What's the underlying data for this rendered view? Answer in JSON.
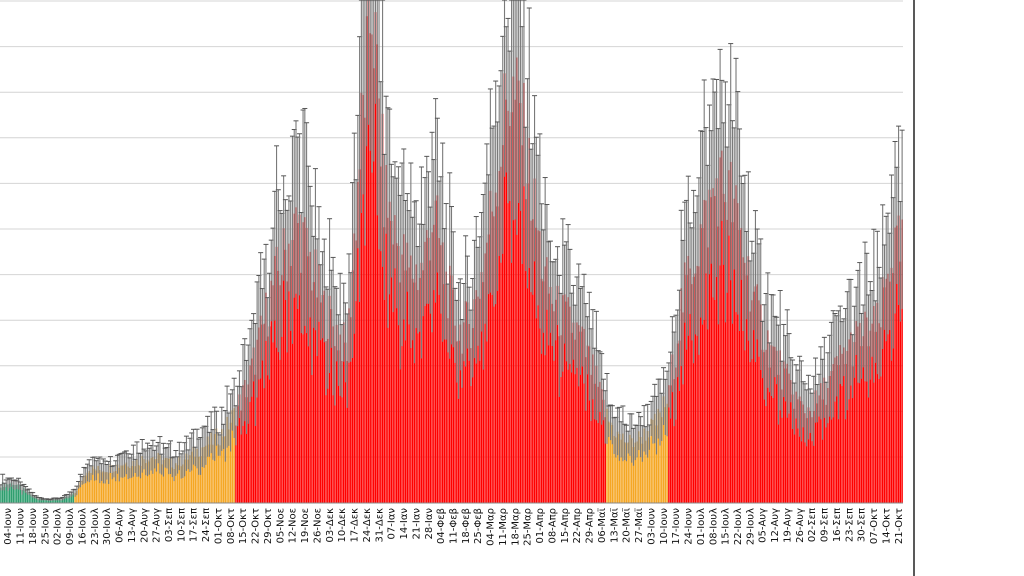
{
  "chart_data": {
    "type": "bar",
    "title": "",
    "xlabel": "",
    "ylabel": "",
    "grid": true,
    "legend": "none",
    "colors": {
      "green": "#2e9e6e",
      "orange": "#f5a623",
      "red": "#ff0000",
      "error_bar": "#7a7a7a",
      "gridline": "#d4d4d4"
    },
    "x_tick_labels": [
      "04-Ιουν",
      "11-Ιουν",
      "18-Ιουν",
      "25-Ιουν",
      "02-Ιουλ",
      "09-Ιουλ",
      "16-Ιουλ",
      "23-Ιουλ",
      "30-Ιουλ",
      "06-Αυγ",
      "13-Αυγ",
      "20-Αυγ",
      "27-Αυγ",
      "03-Σεπ",
      "10-Σεπ",
      "17-Σεπ",
      "24-Σεπ",
      "01-Οκτ",
      "08-Οκτ",
      "15-Οκτ",
      "22-Οκτ",
      "29-Οκτ",
      "05-Νοε",
      "12-Νοε",
      "19-Νοε",
      "26-Νοε",
      "03-Δεκ",
      "10-Δεκ",
      "17-Δεκ",
      "24-Δεκ",
      "31-Δεκ",
      "07-Ιαν",
      "14-Ιαν",
      "21-Ιαν",
      "28-Ιαν",
      "04-Φεβ",
      "11-Φεβ",
      "18-Φεβ",
      "25-Φεβ",
      "04-Μαρ",
      "11-Μαρ",
      "18-Μαρ",
      "25-Μαρ",
      "01-Απρ",
      "08-Απρ",
      "15-Απρ",
      "22-Απρ",
      "29-Απρ",
      "06-Μαϊ",
      "13-Μαϊ",
      "20-Μαϊ",
      "27-Μαϊ",
      "03-Ιουν",
      "10-Ιουν",
      "17-Ιουν",
      "24-Ιουν",
      "01-Ιουλ",
      "08-Ιουλ",
      "15-Ιουλ",
      "22-Ιουλ",
      "29-Ιουλ",
      "05-Αυγ",
      "12-Αυγ",
      "19-Αυγ",
      "26-Αυγ",
      "02-Σεπ",
      "09-Σεπ",
      "16-Σεπ",
      "23-Σεπ",
      "30-Σεπ",
      "07-Οκτ",
      "14-Οκτ",
      "21-Οκτ"
    ],
    "weekly_means": [
      18,
      20,
      12,
      4,
      3,
      4,
      10,
      34,
      33,
      35,
      40,
      41,
      47,
      43,
      39,
      44,
      53,
      61,
      70,
      90,
      120,
      165,
      215,
      248,
      278,
      240,
      195,
      175,
      150,
      345,
      500,
      310,
      260,
      230,
      230,
      290,
      220,
      170,
      180,
      235,
      320,
      410,
      390,
      300,
      220,
      190,
      180,
      160,
      125,
      85,
      65,
      60,
      68,
      80,
      105,
      195,
      245,
      280,
      320,
      305,
      255,
      195,
      160,
      135,
      110,
      90,
      100,
      120,
      145,
      160,
      170,
      175,
      250
    ],
    "weekly_colors": [
      "green",
      "green",
      "green",
      "green",
      "green",
      "green",
      "orange",
      "orange",
      "orange",
      "orange",
      "orange",
      "orange",
      "orange",
      "orange",
      "orange",
      "orange",
      "orange",
      "orange",
      "orange",
      "red",
      "red",
      "red",
      "red",
      "red",
      "red",
      "red",
      "red",
      "red",
      "red",
      "red",
      "red",
      "red",
      "red",
      "red",
      "red",
      "red",
      "red",
      "red",
      "red",
      "red",
      "red",
      "red",
      "red",
      "red",
      "red",
      "red",
      "red",
      "red",
      "red",
      "orange",
      "orange",
      "orange",
      "orange",
      "orange",
      "red",
      "red",
      "red",
      "red",
      "red",
      "red",
      "red",
      "red",
      "red",
      "red",
      "red",
      "red",
      "red",
      "red",
      "red",
      "red",
      "red",
      "red",
      "red"
    ]
  }
}
